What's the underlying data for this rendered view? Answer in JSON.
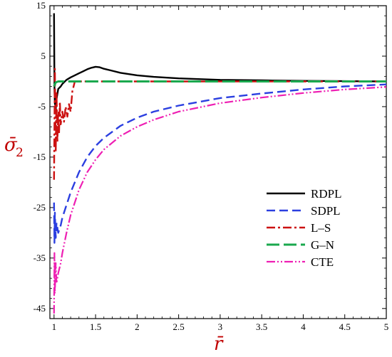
{
  "chart_data": {
    "type": "line",
    "title": "",
    "xlabel": "r̄",
    "ylabel": "σ̄",
    "ylabel_subscript": "2",
    "xlim": [
      0.95,
      5
    ],
    "ylim": [
      -47,
      15
    ],
    "x_ticks": [
      1,
      1.5,
      2,
      2.5,
      3,
      3.5,
      4,
      4.5,
      5
    ],
    "x_tick_labels": [
      "1",
      "1.5",
      "2",
      "2.5",
      "3",
      "3.5",
      "4",
      "4.5",
      "5"
    ],
    "y_ticks": [
      15,
      5,
      -5,
      -15,
      -25,
      -35,
      -45
    ],
    "y_tick_labels": [
      "15",
      "5",
      "-5",
      "-15",
      "-25",
      "-35",
      "-45"
    ],
    "grid": false,
    "legend_position": "lower-right",
    "series": [
      {
        "name": "RDPL",
        "color": "#000000",
        "dash": "solid",
        "x": [
          1.0,
          1.003,
          1.006,
          1.01,
          1.015,
          1.02,
          1.03,
          1.05,
          1.08,
          1.1,
          1.15,
          1.2,
          1.25,
          1.3,
          1.35,
          1.4,
          1.45,
          1.5,
          1.55,
          1.6,
          1.7,
          1.8,
          2.0,
          2.2,
          2.5,
          3.0,
          3.5,
          4.0,
          4.5,
          5.0
        ],
        "y": [
          13.5,
          4.0,
          -2.0,
          -4.5,
          -3.0,
          -5.5,
          -3.5,
          -1.5,
          -1.0,
          -0.5,
          0.3,
          0.8,
          1.2,
          1.6,
          2.0,
          2.4,
          2.7,
          2.9,
          2.8,
          2.5,
          2.1,
          1.7,
          1.2,
          0.9,
          0.6,
          0.3,
          0.2,
          0.1,
          0.05,
          0.0
        ]
      },
      {
        "name": "SDPL",
        "color": "#2b3fe0",
        "dash": "dashed",
        "x": [
          1.0,
          1.005,
          1.01,
          1.02,
          1.03,
          1.05,
          1.08,
          1.1,
          1.15,
          1.2,
          1.3,
          1.4,
          1.5,
          1.6,
          1.8,
          2.0,
          2.2,
          2.5,
          3.0,
          3.5,
          4.0,
          4.5,
          5.0
        ],
        "y": [
          -24.0,
          -32.0,
          -26.0,
          -31.0,
          -28.0,
          -30.0,
          -28.5,
          -27.0,
          -24.5,
          -22.0,
          -18.0,
          -15.0,
          -12.8,
          -11.2,
          -8.8,
          -7.2,
          -6.0,
          -4.8,
          -3.3,
          -2.4,
          -1.6,
          -1.0,
          -0.6
        ]
      },
      {
        "name": "L–S",
        "color": "#cc1111",
        "dash": "dashdot",
        "x": [
          1.0,
          1.01,
          1.02,
          1.03,
          1.04,
          1.05,
          1.06,
          1.07,
          1.08,
          1.1,
          1.12,
          1.14,
          1.16,
          1.18,
          1.2,
          1.22,
          1.25,
          1.3,
          1.5,
          2.0,
          3.0,
          4.0,
          5.0
        ],
        "y": [
          -19.5,
          2.5,
          -14.0,
          -2.0,
          -12.0,
          -6.0,
          -10.5,
          -4.0,
          -8.5,
          -6.0,
          -8.0,
          -5.0,
          -7.0,
          -4.5,
          -6.0,
          -2.0,
          0.0,
          0.0,
          0.0,
          0.0,
          0.0,
          0.0,
          0.0
        ]
      },
      {
        "name": "G–N",
        "color": "#1aa84e",
        "dash": "longdash",
        "x": [
          1.0,
          1.02,
          1.05,
          1.1,
          1.2,
          1.5,
          2.0,
          3.0,
          4.0,
          5.0
        ],
        "y": [
          -1.0,
          -0.2,
          0.0,
          0.0,
          0.0,
          0.0,
          0.0,
          0.0,
          0.0,
          0.0
        ]
      },
      {
        "name": "CTE",
        "color": "#ee1fb3",
        "dash": "dashdotdot",
        "x": [
          1.0,
          1.005,
          1.01,
          1.02,
          1.03,
          1.05,
          1.08,
          1.1,
          1.15,
          1.2,
          1.3,
          1.4,
          1.5,
          1.6,
          1.8,
          2.0,
          2.2,
          2.5,
          3.0,
          3.5,
          4.0,
          4.5,
          5.0
        ],
        "y": [
          -46.0,
          -34.0,
          -42.0,
          -36.0,
          -40.0,
          -38.0,
          -36.0,
          -34.0,
          -30.0,
          -26.5,
          -21.5,
          -18.0,
          -15.5,
          -13.5,
          -10.8,
          -9.0,
          -7.6,
          -6.0,
          -4.3,
          -3.2,
          -2.3,
          -1.6,
          -1.1
        ]
      }
    ]
  }
}
